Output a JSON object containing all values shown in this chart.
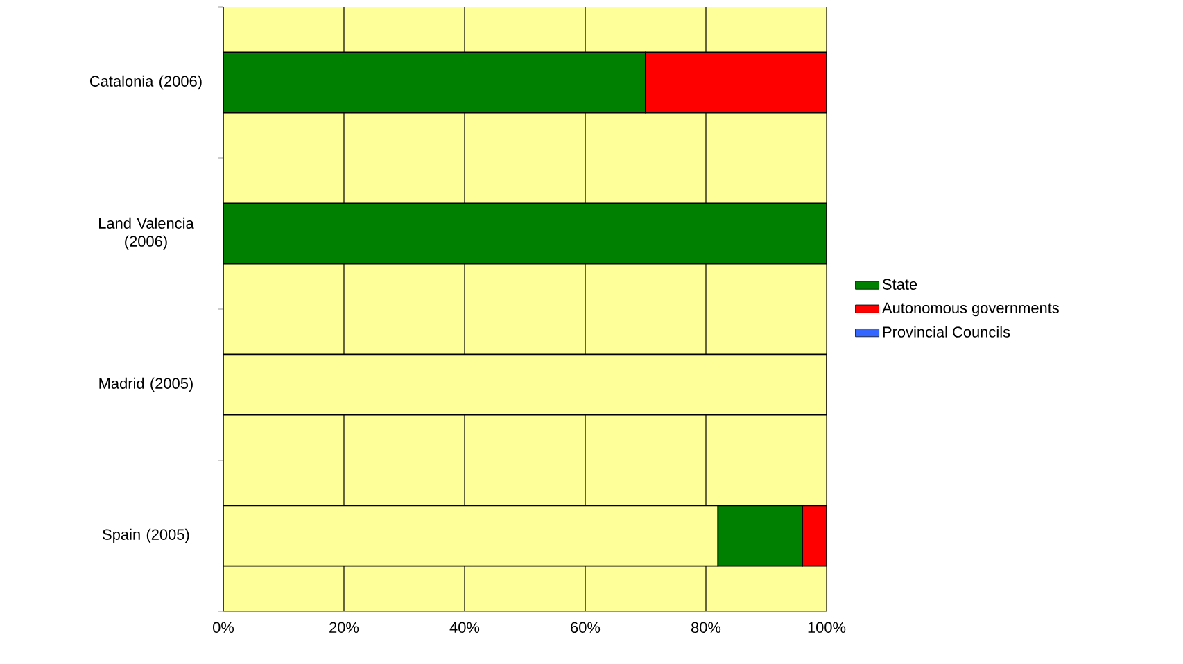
{
  "chart_data": {
    "type": "bar",
    "orientation": "horizontal",
    "stacked": true,
    "categories": [
      "Catalonia (2006)",
      "Land Valencia (2006)",
      "Madrid (2005)",
      "Spain (2005)"
    ],
    "series": [
      {
        "color": "#ffff99",
        "values": [
          null,
          null,
          100,
          82
        ]
      },
      {
        "name": "State",
        "color": "#008000",
        "values": [
          70,
          100,
          null,
          14
        ]
      },
      {
        "name": "Autonomous governments",
        "color": "#ff0000",
        "values": [
          30,
          null,
          null,
          4
        ]
      },
      {
        "name": "Provincial Councils",
        "color": "#3366ff",
        "values": [
          null,
          null,
          null,
          null
        ]
      }
    ],
    "xlim": [
      0,
      100
    ],
    "xticks": [
      {
        "value": 0,
        "label": "0%"
      },
      {
        "value": 20,
        "label": "20%"
      },
      {
        "value": 40,
        "label": "40%"
      },
      {
        "value": 60,
        "label": "60%"
      },
      {
        "value": 80,
        "label": "80%"
      },
      {
        "value": 100,
        "label": "100%"
      }
    ],
    "grid": "x",
    "legend": "right"
  }
}
